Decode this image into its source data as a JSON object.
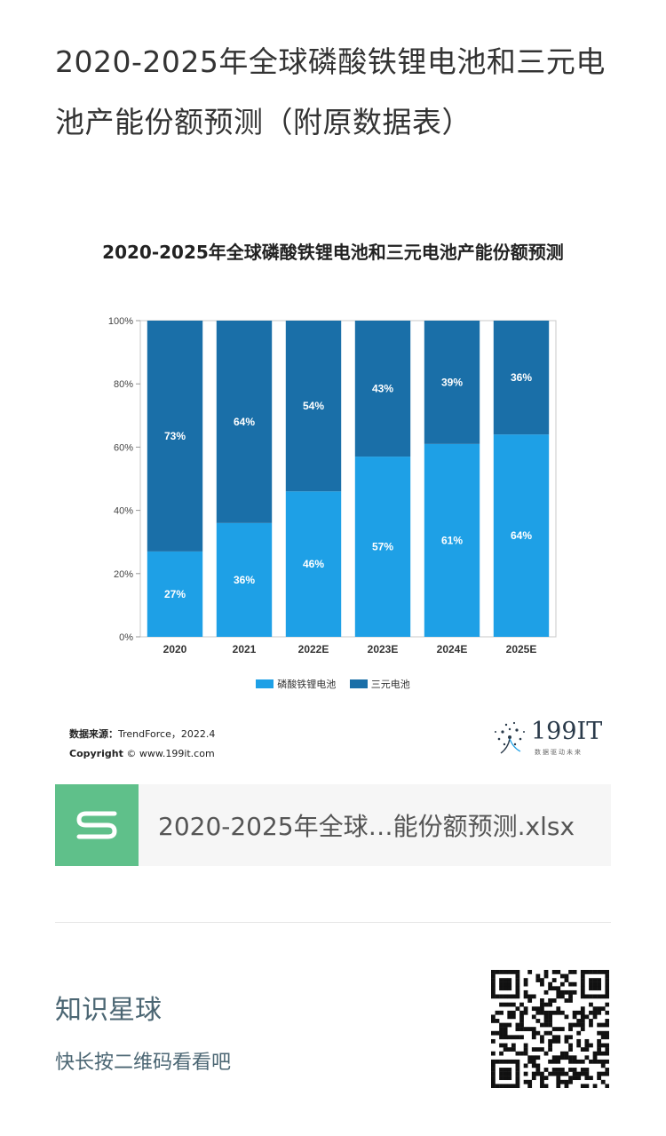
{
  "article": {
    "title": "2020-2025年全球磷酸铁锂电池和三元电池产能份额预测（附原数据表）"
  },
  "chart_data": {
    "type": "bar",
    "stacked": true,
    "title": "2020-2025年全球磷酸铁锂电池和三元电池产能份额预测",
    "categories": [
      "2020",
      "2021",
      "2022E",
      "2023E",
      "2024E",
      "2025E"
    ],
    "series": [
      {
        "name": "磷酸铁锂电池",
        "values": [
          27,
          36,
          46,
          57,
          61,
          64
        ],
        "color": "#1ea0e6"
      },
      {
        "name": "三元电池",
        "values": [
          73,
          64,
          54,
          43,
          39,
          36
        ],
        "color": "#1a6fa8"
      }
    ],
    "data_labels": {
      "磷酸铁锂电池": [
        "27%",
        "36%",
        "46%",
        "57%",
        "61%",
        "64%"
      ],
      "三元电池": [
        "73%",
        "64%",
        "54%",
        "43%",
        "39%",
        "36%"
      ]
    },
    "yticks": [
      "0%",
      "20%",
      "40%",
      "60%",
      "80%",
      "100%"
    ],
    "ylim": [
      0,
      100
    ],
    "legend": "bottom"
  },
  "source": {
    "label": "数据来源：",
    "text": "TrendForce，2022.4",
    "copyright_label": "Copyright",
    "copyright_text": "© www.199it.com"
  },
  "brand": {
    "name": "199IT",
    "tagline": "数据驱动未来"
  },
  "attachment": {
    "file_name": "2020-2025年全球…能份额预测.xlsx",
    "icon": "spreadsheet-s-icon",
    "icon_color": "#5fc08a"
  },
  "promo": {
    "title": "知识星球",
    "subtitle": "快长按二维码看看吧"
  }
}
